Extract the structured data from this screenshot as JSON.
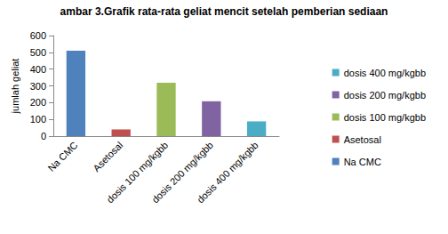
{
  "chart_data": {
    "type": "bar",
    "title": "ambar 3.Grafik rata-rata geliat mencit setelah pemberian sediaan",
    "y_label": "jumlah geliat",
    "categories": [
      "Na CMC",
      "Asetosal",
      "dosis 100 mg/kgbb",
      "dosis 200 mg/kgbb",
      "dosis 400 mg/kgbb"
    ],
    "values": [
      510,
      40,
      318,
      208,
      88
    ],
    "colors": [
      "#4f81bd",
      "#c0504d",
      "#9bbb59",
      "#8064a2",
      "#4bacc6"
    ],
    "ylim": [
      0,
      600
    ],
    "yticks": [
      0,
      100,
      200,
      300,
      400,
      500,
      600
    ],
    "grid": false,
    "legend": "right"
  }
}
